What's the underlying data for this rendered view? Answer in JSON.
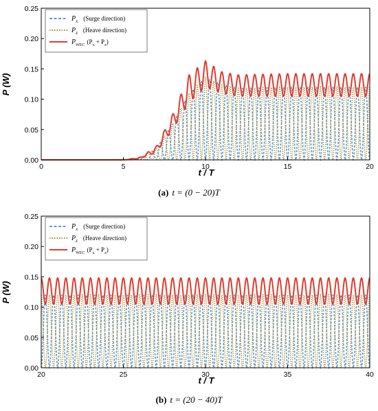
{
  "chart_data": [
    {
      "type": "line",
      "caption_label": "(a)",
      "caption_text": "t = (0 − 20)T",
      "xlabel": "t / T",
      "ylabel": "P (W)",
      "xlim": [
        0,
        20
      ],
      "ylim": [
        0,
        0.25
      ],
      "xticks": [
        "0",
        "5",
        "10",
        "15",
        "20"
      ],
      "yticks": [
        "0.00",
        "0.05",
        "0.10",
        "0.15",
        "0.20",
        "0.25"
      ],
      "legend_position": "top-left",
      "series": [
        {
          "name": "Px (Surge direction)",
          "color": "#5b9bd5",
          "style": "dashed",
          "envelope": {
            "t": [
              0,
              5,
              6,
              7,
              8,
              9,
              10,
              11,
              12,
              15,
              20
            ],
            "peak": [
              0,
              0,
              0.003,
              0.018,
              0.06,
              0.11,
              0.135,
              0.125,
              0.118,
              0.12,
              0.12
            ]
          }
        },
        {
          "name": "Pz (Heave direction)",
          "color": "#a98b2b",
          "style": "dotted",
          "envelope": {
            "t": [
              0,
              5,
              6,
              7,
              8,
              9,
              10,
              11,
              12,
              15,
              20
            ],
            "peak": [
              0,
              0,
              0.003,
              0.018,
              0.06,
              0.11,
              0.135,
              0.125,
              0.118,
              0.12,
              0.12
            ]
          }
        },
        {
          "name": "PWEC (Px + Pz)",
          "color": "#e23a2c",
          "style": "solid",
          "envelope": {
            "t": [
              0,
              5,
              6,
              7,
              8,
              9,
              10,
              11,
              12,
              15,
              20
            ],
            "peak": [
              0,
              0,
              0.004,
              0.022,
              0.075,
              0.14,
              0.163,
              0.145,
              0.14,
              0.142,
              0.142
            ],
            "trough": [
              0,
              0,
              0.002,
              0.012,
              0.05,
              0.095,
              0.12,
              0.11,
              0.105,
              0.105,
              0.105
            ]
          }
        }
      ]
    },
    {
      "type": "line",
      "caption_label": "(b)",
      "caption_text": "t = (20 − 40)T",
      "xlabel": "t / T",
      "ylabel": "P (W)",
      "xlim": [
        20,
        40
      ],
      "ylim": [
        0,
        0.25
      ],
      "xticks": [
        "20",
        "25",
        "30",
        "35",
        "40"
      ],
      "yticks": [
        "0.00",
        "0.05",
        "0.10",
        "0.15",
        "0.20",
        "0.25"
      ],
      "legend_position": "top-left",
      "series": [
        {
          "name": "Px (Surge direction)",
          "color": "#5b9bd5",
          "style": "dashed",
          "envelope": {
            "t": [
              20,
              40
            ],
            "peak": [
              0.12,
              0.12
            ]
          }
        },
        {
          "name": "Pz (Heave direction)",
          "color": "#a98b2b",
          "style": "dotted",
          "envelope": {
            "t": [
              20,
              40
            ],
            "peak": [
              0.12,
              0.12
            ]
          }
        },
        {
          "name": "PWEC (Px + Pz)",
          "color": "#e23a2c",
          "style": "solid",
          "envelope": {
            "t": [
              20,
              40
            ],
            "peak": [
              0.148,
              0.148
            ],
            "trough": [
              0.105,
              0.105
            ]
          }
        }
      ]
    }
  ],
  "legend": {
    "surge_sym": "P",
    "surge_sub": "x",
    "surge_desc": "(Surge direction)",
    "heave_sym": "P",
    "heave_sub": "z",
    "heave_desc": "(Heave direction)",
    "wec_sym": "P",
    "wec_sub": "WEC",
    "wec_desc_1": "(P",
    "wec_desc_sub1": "x",
    "wec_desc_2": " + P",
    "wec_desc_sub2": "z",
    "wec_desc_3": ")"
  }
}
